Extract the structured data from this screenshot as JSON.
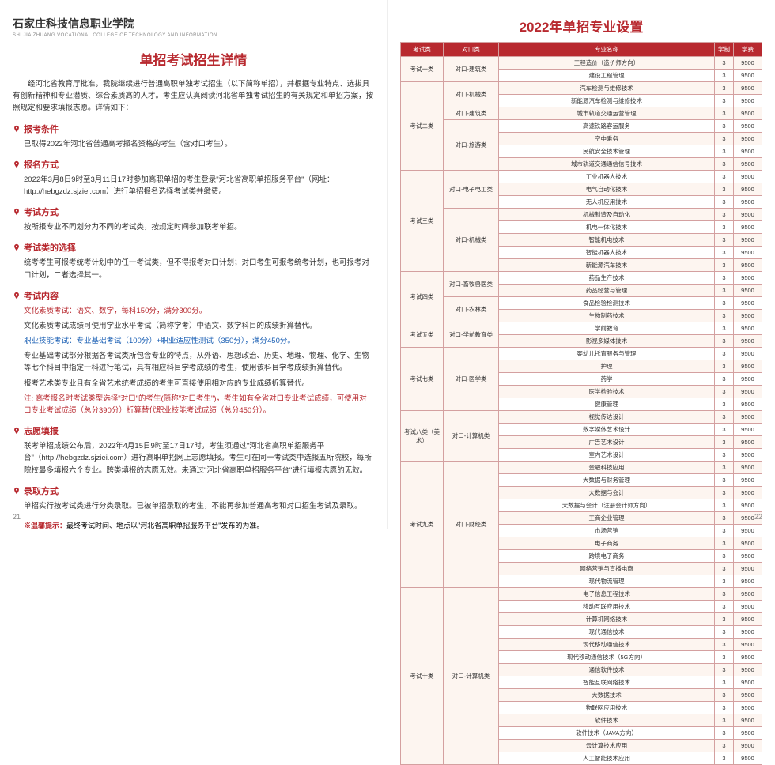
{
  "logo": "石家庄科技信息职业学院",
  "logoSub": "SHI JIA ZHUANG VOCATIONAL COLLEGE OF TECHNOLOGY AND INFORMATION",
  "leftTitle": "单招考试招生详情",
  "intro": "经河北省教育厅批准，我院继续进行普通高职单独考试招生（以下简称单招），并根据专业特点、选拔具有创新精神和专业潜质、综合素质高的人才。考生应认真阅读河北省单独考试招生的有关规定和单招方案，按照规定和要求填报志愿。详情如下：",
  "sections": [
    {
      "title": "报考条件",
      "body": [
        {
          "t": "已取得2022年河北省普通高考报名资格的考生（含对口考生）。"
        }
      ]
    },
    {
      "title": "报名方式",
      "body": [
        {
          "t": "2022年3月8日9时至3月11日17时参加高职单招的考生登录\"河北省高职单招服务平台\"（网址：http://hebgzdz.sjziei.com）进行单招报名选择考试类并缴费。"
        }
      ]
    },
    {
      "title": "考试方式",
      "body": [
        {
          "t": "按所报专业不同划分为不同的考试类，按规定时间参加联考单招。"
        }
      ]
    },
    {
      "title": "考试类的选择",
      "body": [
        {
          "t": "统考考生可报考统考计划中的任一考试类，但不得报考对口计划；对口考生可报考统考计划，也可报考对口计划，二者选择其一。"
        }
      ]
    },
    {
      "title": "考试内容",
      "body": [
        {
          "t": "文化素质考试：语文、数学，每科150分，满分300分。",
          "cls": "red"
        },
        {
          "t": "文化素质考试成绩可使用学业水平考试（简称学考）中语文、数学科目的成绩折算替代。"
        },
        {
          "t": "职业技能考试：专业基础考试（100分）+职业适应性测试（350分），满分450分。",
          "cls": "blue"
        },
        {
          "t": "专业基础考试部分根据各考试类所包含专业的特点，从外语、思想政治、历史、地理、物理、化学、生物等七个科目中指定一科进行笔试，具有相应科目学考成绩的考生，使用该科目学考成绩折算替代。"
        },
        {
          "t": "报考艺术类专业且有全省艺术统考成绩的考生可直接使用相对应的专业成绩折算替代。"
        },
        {
          "t": "注: 高考报名时考试类型选择\"对口\"的考生(简称\"对口考生\")，考生如有全省对口专业考试成绩，可使用对口专业考试成绩（总分390分）折算替代职业技能考试成绩（总分450分）。",
          "cls": "red"
        }
      ]
    },
    {
      "title": "志愿填报",
      "body": [
        {
          "t": "联考单招成绩公布后，2022年4月15日9时至17日17时，考生须通过\"河北省高职单招服务平台\"（http://hebgzdz.sjziei.com）进行高职单招网上志愿填报。考生可在同一考试类中选报五所院校，每所院校最多填报六个专业。跨类填报的志愿无效。未通过\"河北省高职单招服务平台\"进行填报志愿的无效。"
        }
      ]
    },
    {
      "title": "录取方式",
      "body": [
        {
          "t": "单招实行按考试类进行分类录取。已被单招录取的考生，不能再参加普通高考和对口招生考试及录取。"
        }
      ]
    }
  ],
  "warmTip": {
    "label": "※温馨提示：",
    "text": "最终考试时间、地点以\"河北省高职单招服务平台\"发布的为准。"
  },
  "pageLeft": "21",
  "pageRight": "22",
  "rightTitle": "2022年单招专业设置",
  "headers": [
    "考试类",
    "对口类",
    "专业名称",
    "学制",
    "学费"
  ],
  "rows": [
    {
      "c1": {
        "v": "考试一类",
        "rs": 2
      },
      "c2": {
        "v": "对口-建筑类",
        "rs": 2
      },
      "c3": "工程造价（造价师方向）",
      "c4": "3",
      "c5": "9500"
    },
    {
      "c3": "建设工程管理",
      "c4": "3",
      "c5": "9500"
    },
    {
      "c1": {
        "v": "考试二类",
        "rs": 7
      },
      "c2": {
        "v": "对口-机械类",
        "rs": 2
      },
      "c3": "汽车检测与维修技术",
      "c4": "3",
      "c5": "9500"
    },
    {
      "c3": "新能源汽车检测与维修技术",
      "c4": "3",
      "c5": "9500"
    },
    {
      "c2": {
        "v": "对口-建筑类",
        "rs": 1
      },
      "c3": "城市轨道交通运营管理",
      "c4": "3",
      "c5": "9500"
    },
    {
      "c2": {
        "v": "对口-旅游类",
        "rs": 4
      },
      "c3": "高速铁路客运服务",
      "c4": "3",
      "c5": "9500"
    },
    {
      "c3": "空中乘务",
      "c4": "3",
      "c5": "9500"
    },
    {
      "c3": "民航安全技术管理",
      "c4": "3",
      "c5": "9500"
    },
    {
      "c3": "城市轨道交通通信信号技术",
      "c4": "3",
      "c5": "9500"
    },
    {
      "c1": {
        "v": "考试三类",
        "rs": 8
      },
      "c2": {
        "v": "对口-电子电工类",
        "rs": 3
      },
      "c3": "工业机器人技术",
      "c4": "3",
      "c5": "9500"
    },
    {
      "c3": "电气自动化技术",
      "c4": "3",
      "c5": "9500"
    },
    {
      "c3": "无人机应用技术",
      "c4": "3",
      "c5": "9500"
    },
    {
      "c2": {
        "v": "对口-机械类",
        "rs": 5
      },
      "c3": "机械制造及自动化",
      "c4": "3",
      "c5": "9500"
    },
    {
      "c3": "机电一体化技术",
      "c4": "3",
      "c5": "9500"
    },
    {
      "c3": "智能机电技术",
      "c4": "3",
      "c5": "9500"
    },
    {
      "c3": "智能机器人技术",
      "c4": "3",
      "c5": "9500"
    },
    {
      "c3": "新能源汽车技术",
      "c4": "3",
      "c5": "9500"
    },
    {
      "c1": {
        "v": "考试四类",
        "rs": 4
      },
      "c2": {
        "v": "对口-畜牧兽医类",
        "rs": 2
      },
      "c3": "药品生产技术",
      "c4": "3",
      "c5": "9500"
    },
    {
      "c3": "药品经营与管理",
      "c4": "3",
      "c5": "9500"
    },
    {
      "c2": {
        "v": "对口-农林类",
        "rs": 2
      },
      "c3": "食品检验检测技术",
      "c4": "3",
      "c5": "9500"
    },
    {
      "c3": "生物制药技术",
      "c4": "3",
      "c5": "9500"
    },
    {
      "c1": {
        "v": "考试五类",
        "rs": 2
      },
      "c2": {
        "v": "对口-学前教育类",
        "rs": 2
      },
      "c3": "学前教育",
      "c4": "3",
      "c5": "9500"
    },
    {
      "c3": "影视多媒体技术",
      "c4": "3",
      "c5": "9500"
    },
    {
      "c1": {
        "v": "考试七类",
        "rs": 5
      },
      "c2": {
        "v": "对口-医学类",
        "rs": 5
      },
      "c3": "婴幼儿托育服务与管理",
      "c4": "3",
      "c5": "9500"
    },
    {
      "c3": "护理",
      "c4": "3",
      "c5": "9500"
    },
    {
      "c3": "药学",
      "c4": "3",
      "c5": "9500"
    },
    {
      "c3": "医学检验技术",
      "c4": "3",
      "c5": "9500"
    },
    {
      "c3": "健康管理",
      "c4": "3",
      "c5": "9500"
    },
    {
      "c1": {
        "v": "考试八类（美术）",
        "rs": 4
      },
      "c2": {
        "v": "对口-计算机类",
        "rs": 4
      },
      "c3": "视觉传达设计",
      "c4": "3",
      "c5": "9500"
    },
    {
      "c3": "数字媒体艺术设计",
      "c4": "3",
      "c5": "9500"
    },
    {
      "c3": "广告艺术设计",
      "c4": "3",
      "c5": "9500"
    },
    {
      "c3": "室内艺术设计",
      "c4": "3",
      "c5": "9500"
    },
    {
      "c1": {
        "v": "考试九类",
        "rs": 10
      },
      "c2": {
        "v": "对口-财经类",
        "rs": 10
      },
      "c3": "金融科技应用",
      "c4": "3",
      "c5": "9500"
    },
    {
      "c3": "大数据与财务管理",
      "c4": "3",
      "c5": "9500"
    },
    {
      "c3": "大数据与会计",
      "c4": "3",
      "c5": "9500"
    },
    {
      "c3": "大数据与会计（注册会计师方向）",
      "c4": "3",
      "c5": "9500"
    },
    {
      "c3": "工商企业管理",
      "c4": "3",
      "c5": "9500"
    },
    {
      "c3": "市场营销",
      "c4": "3",
      "c5": "9500"
    },
    {
      "c3": "电子商务",
      "c4": "3",
      "c5": "9500"
    },
    {
      "c3": "跨境电子商务",
      "c4": "3",
      "c5": "9500"
    },
    {
      "c3": "网络营销与直播电商",
      "c4": "3",
      "c5": "9500"
    },
    {
      "c3": "现代物流管理",
      "c4": "3",
      "c5": "9500"
    },
    {
      "c1": {
        "v": "考试十类",
        "rs": 14
      },
      "c2": {
        "v": "对口-计算机类",
        "rs": 14
      },
      "c3": "电子信息工程技术",
      "c4": "3",
      "c5": "9500"
    },
    {
      "c3": "移动互联应用技术",
      "c4": "3",
      "c5": "9500"
    },
    {
      "c3": "计算机网络技术",
      "c4": "3",
      "c5": "9500"
    },
    {
      "c3": "现代通信技术",
      "c4": "3",
      "c5": "9500"
    },
    {
      "c3": "现代移动通信技术",
      "c4": "3",
      "c5": "9500"
    },
    {
      "c3": "现代移动通信技术（5G方向）",
      "c4": "3",
      "c5": "9500"
    },
    {
      "c3": "通信软件技术",
      "c4": "3",
      "c5": "9500"
    },
    {
      "c3": "智能互联网络技术",
      "c4": "3",
      "c5": "9500"
    },
    {
      "c3": "大数据技术",
      "c4": "3",
      "c5": "9500"
    },
    {
      "c3": "物联网应用技术",
      "c4": "3",
      "c5": "9500"
    },
    {
      "c3": "软件技术",
      "c4": "3",
      "c5": "9500"
    },
    {
      "c3": "软件技术（JAVA方向）",
      "c4": "3",
      "c5": "9500"
    },
    {
      "c3": "云计算技术应用",
      "c4": "3",
      "c5": "9500"
    },
    {
      "c3": "人工智能技术应用",
      "c4": "3",
      "c5": "9500"
    }
  ]
}
